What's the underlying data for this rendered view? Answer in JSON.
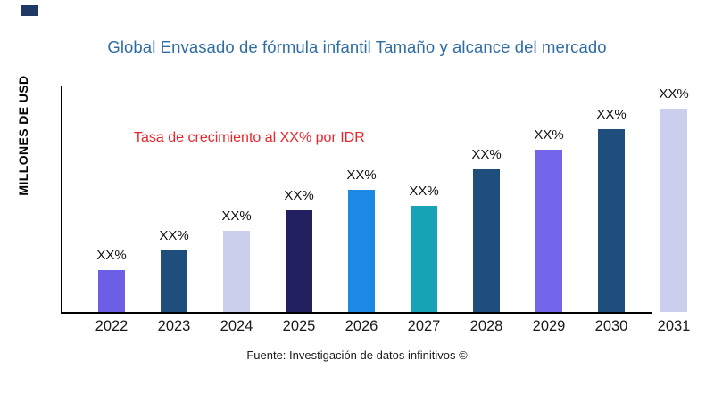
{
  "window": {
    "background": "#ffffff"
  },
  "brand_mark": {
    "color": "#1f3864"
  },
  "chart_data": {
    "type": "bar",
    "title": "Global Envasado de fórmula infantil Tamaño y alcance del mercado",
    "title_color": "#2e6ca3",
    "xlabel": "",
    "ylabel": "MILLONES DE USD",
    "categories": [
      "2022",
      "2023",
      "2024",
      "2025",
      "2026",
      "2027",
      "2028",
      "2029",
      "2030",
      "2031"
    ],
    "values": [
      47,
      69,
      91,
      114,
      137,
      119,
      160,
      182,
      205,
      228
    ],
    "value_unit": "relative-px (numeric y-axis not shown on chart)",
    "bar_labels": [
      "XX%",
      "XX%",
      "XX%",
      "XX%",
      "XX%",
      "XX%",
      "XX%",
      "XX%",
      "XX%",
      "XX%"
    ],
    "bar_colors": [
      "#6c5fe6",
      "#1f4e7c",
      "#cacfee",
      "#232060",
      "#1e88e5",
      "#16a3b5",
      "#1f4e7c",
      "#7366ea",
      "#1f4e7c",
      "#cacfee"
    ],
    "annotation": {
      "text": "Tasa de crecimiento al XX% por IDR",
      "color": "#e8262c"
    },
    "source": "Fuente: Investigación de datos infinitivos ©",
    "legend": false,
    "grid": false,
    "axis_color": "#000000",
    "label_color": "#1a1a1a"
  }
}
